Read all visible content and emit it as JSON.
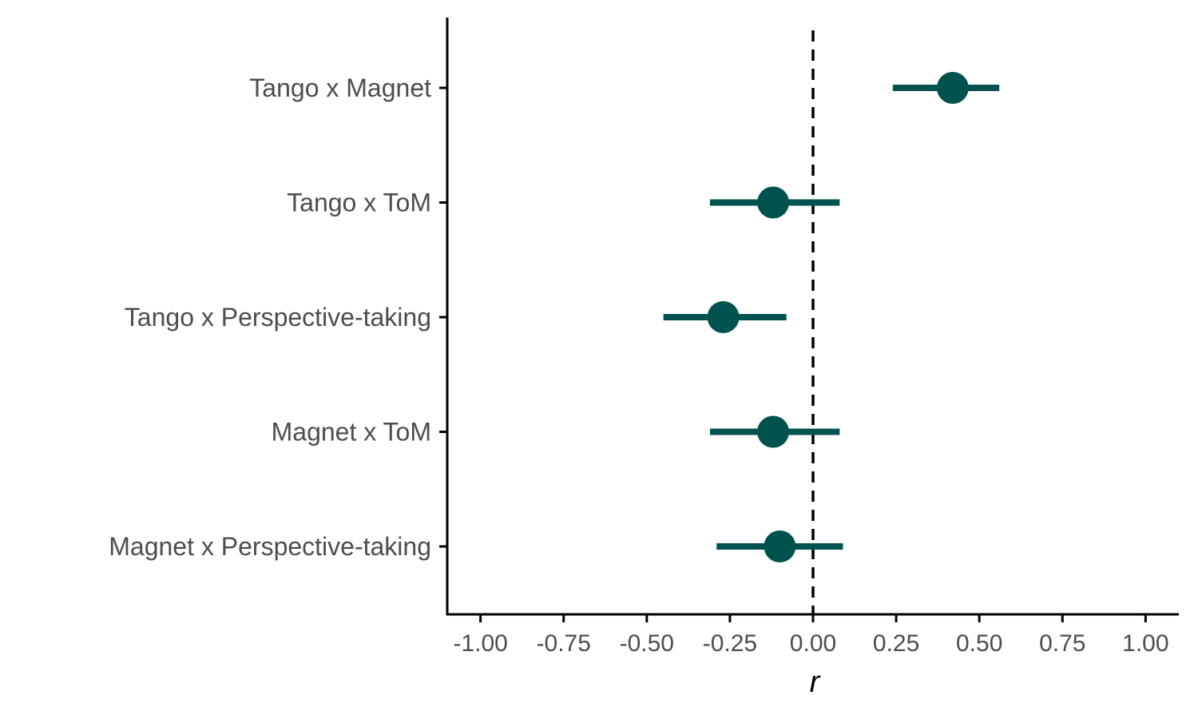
{
  "chart_data": {
    "type": "scatter",
    "subtype": "forest-plot",
    "title": "",
    "xlabel": "r",
    "ylabel": "",
    "xlim": [
      -1.1,
      1.1
    ],
    "x_ticks": [
      -1.0,
      -0.75,
      -0.5,
      -0.25,
      0.0,
      0.25,
      0.5,
      0.75,
      1.0
    ],
    "x_tick_labels": [
      "-1.00",
      "-0.75",
      "-0.50",
      "-0.25",
      "0.00",
      "0.25",
      "0.50",
      "0.75",
      "1.00"
    ],
    "reference_line": {
      "x": 0.0,
      "style": "dashed",
      "color": "#000000"
    },
    "grid": false,
    "legend": "none",
    "point_color": "#00524f",
    "categories": [
      "Tango x Magnet",
      "Tango x ToM",
      "Tango x Perspective-taking",
      "Magnet x ToM",
      "Magnet x Perspective-taking"
    ],
    "estimates": [
      0.42,
      -0.12,
      -0.27,
      -0.12,
      -0.1
    ],
    "ci_lower": [
      0.24,
      -0.31,
      -0.45,
      -0.31,
      -0.29
    ],
    "ci_upper": [
      0.56,
      0.08,
      -0.08,
      0.08,
      0.09
    ]
  }
}
